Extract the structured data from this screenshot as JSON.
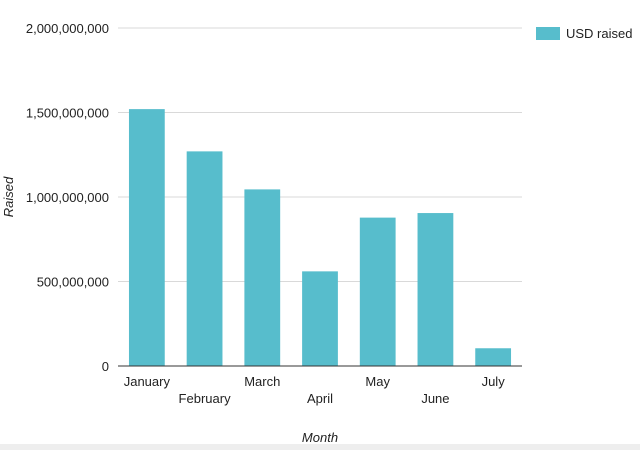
{
  "chart_data": {
    "type": "bar",
    "categories": [
      "January",
      "February",
      "March",
      "April",
      "May",
      "June",
      "July"
    ],
    "series": [
      {
        "name": "USD raised",
        "color": "#57bdcc",
        "values": [
          1520000000,
          1270000000,
          1045000000,
          560000000,
          878000000,
          905000000,
          105000000
        ]
      }
    ],
    "title": "",
    "xlabel": "Month",
    "ylabel": "Raised",
    "ylim": [
      0,
      2000000000
    ],
    "yticks": [
      0,
      500000000,
      1000000000,
      1500000000,
      2000000000
    ],
    "ytick_labels": [
      "0",
      "500,000,000",
      "1,000,000,000",
      "1,500,000,000",
      "2,000,000,000"
    ],
    "grid": true,
    "legend_position": "top-right",
    "grid_color": "#d9d9d9",
    "axis_color": "#333333"
  }
}
